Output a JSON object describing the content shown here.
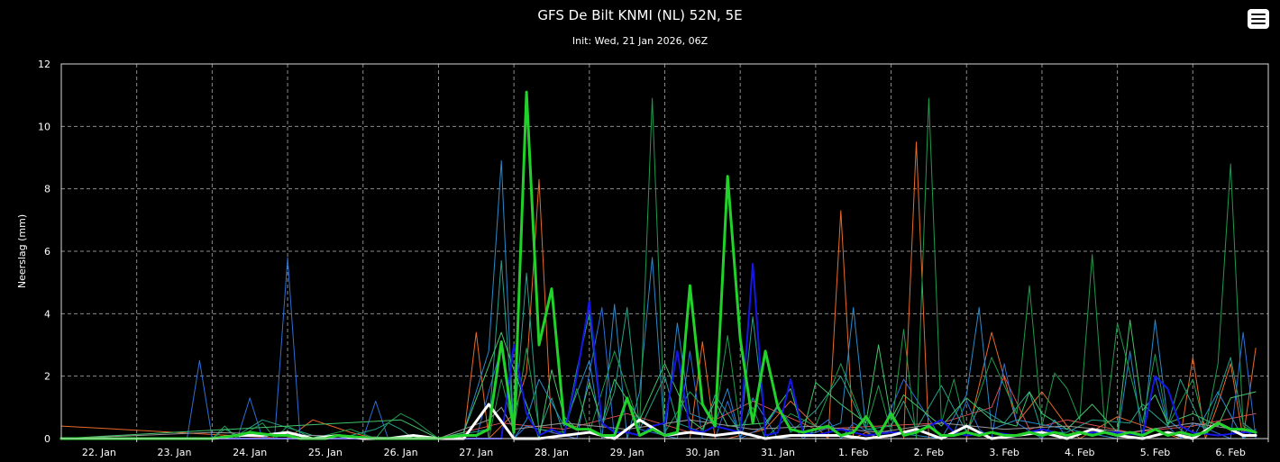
{
  "chart_data": {
    "type": "line",
    "title": "GFS De Bilt KNMI (NL) 52N, 5E",
    "subtitle": "Init: Wed, 21 Jan 2026, 06Z",
    "ylabel": "Neerslag (mm)",
    "xlabel": "",
    "ylim": [
      0,
      12
    ],
    "yticks": [
      0,
      2,
      4,
      6,
      8,
      10,
      12
    ],
    "xlim": [
      0,
      96
    ],
    "xtick_labels": [
      "22. Jan",
      "23. Jan",
      "24. Jan",
      "25. Jan",
      "26. Jan",
      "27. Jan",
      "28. Jan",
      "29. Jan",
      "30. Jan",
      "31. Jan",
      "1. Feb",
      "2. Feb",
      "3. Feb",
      "4. Feb",
      "5. Feb",
      "6. Feb"
    ],
    "xtick_positions": [
      3,
      9,
      15,
      21,
      27,
      33,
      39,
      45,
      51,
      57,
      63,
      69,
      75,
      81,
      87,
      93
    ],
    "grid": true,
    "legend": "none",
    "series": [
      {
        "color": "#e86a2a",
        "width": 1,
        "x": [
          0,
          18,
          20,
          23,
          25,
          32,
          33,
          34,
          36,
          37,
          38,
          39,
          41,
          50,
          51,
          52,
          53,
          56,
          58,
          61,
          62,
          63,
          64,
          65,
          67,
          68,
          69,
          72,
          74,
          76,
          78,
          80,
          81,
          84,
          89,
          90,
          91,
          92,
          93,
          94,
          95
        ],
        "y": [
          0.4,
          0,
          0.6,
          0.2,
          0,
          0,
          3.4,
          0,
          0.8,
          2.1,
          8.3,
          0.2,
          0,
          0,
          3.1,
          0,
          0,
          0.3,
          1.2,
          0,
          7.3,
          0,
          0.2,
          0,
          0,
          9.5,
          0,
          0,
          3.4,
          0.5,
          1.5,
          0.4,
          0,
          0.7,
          0,
          2.6,
          0,
          1.1,
          2.4,
          0,
          2.9
        ]
      },
      {
        "color": "#d85050",
        "width": 1,
        "x": [
          0,
          30,
          35,
          40,
          45,
          50,
          55,
          60,
          65,
          70,
          74,
          75,
          77,
          80,
          85,
          90,
          95
        ],
        "y": [
          0,
          0,
          0.5,
          0.3,
          0.8,
          0.2,
          1.2,
          0.3,
          0.4,
          0.5,
          1.0,
          2.0,
          0.3,
          0.6,
          0.2,
          0.4,
          0.8
        ]
      },
      {
        "color": "#2d6fd6",
        "width": 1,
        "x": [
          0,
          10,
          11,
          12,
          14,
          15,
          16,
          17,
          18,
          19,
          20,
          24,
          25,
          26,
          33,
          34,
          35,
          36,
          37,
          41,
          43,
          44,
          45,
          46,
          49,
          50,
          51,
          52,
          53,
          54,
          56,
          57,
          59,
          61,
          62,
          63,
          65,
          67,
          70,
          71,
          72,
          73,
          74,
          75,
          76,
          78,
          79,
          80,
          86,
          87,
          88,
          89,
          90,
          93,
          94,
          95
        ],
        "y": [
          0,
          0,
          2.5,
          0,
          0,
          1.3,
          0,
          0.2,
          5.8,
          0,
          0,
          0,
          1.2,
          0,
          0,
          1.5,
          2.9,
          0,
          0.4,
          0,
          4.2,
          0,
          1.3,
          0.3,
          0,
          2.8,
          0,
          0,
          1.2,
          0,
          0.4,
          1.0,
          0,
          0.6,
          0,
          0.5,
          0,
          1.9,
          0,
          0.2,
          1.2,
          0.3,
          0,
          2.4,
          0.5,
          0,
          0.6,
          0,
          0,
          2.0,
          0.4,
          0,
          0.5,
          0,
          3.4,
          0
        ]
      },
      {
        "color": "#2b8ac9",
        "width": 1,
        "x": [
          0,
          30,
          32,
          34,
          35,
          36,
          37,
          38,
          40,
          42,
          43,
          44,
          45,
          46,
          47,
          48,
          49,
          50,
          52,
          53,
          54,
          55,
          57,
          60,
          62,
          63,
          64,
          66,
          70,
          72,
          73,
          74,
          76,
          80,
          84,
          85,
          86,
          87,
          88,
          90,
          92,
          94,
          95
        ],
        "y": [
          0,
          0,
          0.2,
          2.8,
          8.9,
          0,
          0.6,
          1.9,
          0.4,
          2.5,
          0,
          4.3,
          0,
          1.5,
          5.8,
          0,
          3.7,
          0.8,
          0.5,
          1.6,
          0,
          1.3,
          0,
          0.2,
          0.5,
          4.2,
          0.3,
          0.2,
          0,
          1.4,
          4.2,
          0.3,
          0.6,
          0.3,
          0,
          2.8,
          0,
          3.8,
          0.6,
          0,
          1.5,
          0,
          0.3
        ]
      },
      {
        "color": "#27a08a",
        "width": 1,
        "x": [
          0,
          12,
          13,
          14,
          16,
          20,
          22,
          25,
          26,
          27,
          28,
          30,
          34,
          35,
          36,
          37,
          38,
          39,
          40,
          41,
          42,
          43,
          44,
          45,
          46,
          48,
          49,
          51,
          52,
          54,
          55,
          56,
          57,
          58,
          60,
          62,
          64,
          66,
          67,
          68,
          70,
          72,
          73,
          75,
          77,
          78,
          80,
          82,
          85,
          86,
          88,
          89,
          91,
          92,
          93,
          94,
          95
        ],
        "y": [
          0,
          0,
          0.3,
          0.1,
          0.6,
          0.1,
          0,
          0.3,
          0.5,
          0.3,
          0,
          0,
          0.3,
          5.7,
          0.2,
          5.3,
          0.2,
          1.3,
          0.1,
          2.2,
          4.0,
          0.4,
          1.5,
          4.2,
          0.3,
          2.0,
          0.5,
          0.2,
          1.4,
          0.2,
          3.9,
          0.4,
          1.1,
          0.2,
          0.9,
          2.0,
          0.3,
          0.4,
          1.2,
          0.3,
          1.7,
          0.2,
          1.0,
          0.5,
          1.5,
          0.2,
          0.2,
          0.6,
          0.5,
          1.1,
          0.4,
          1.9,
          0.2,
          1.4,
          2.6,
          0.5,
          0.2
        ]
      },
      {
        "color": "#1f9a4d",
        "width": 1,
        "x": [
          0,
          12,
          13,
          14,
          16,
          17,
          18,
          20,
          23,
          25,
          26,
          27,
          28,
          30,
          34,
          35,
          36,
          37,
          38,
          40,
          41,
          42,
          44,
          46,
          47,
          48,
          50,
          52,
          53,
          54,
          55,
          56,
          58,
          60,
          62,
          64,
          65,
          66,
          67,
          68,
          69,
          70,
          71,
          72,
          74,
          76,
          77,
          78,
          79,
          80,
          81,
          82,
          83,
          84,
          86,
          87,
          88,
          90,
          91,
          92,
          93,
          94,
          95
        ],
        "y": [
          0,
          0,
          0.4,
          0,
          0.5,
          0,
          0.4,
          0,
          0.3,
          0,
          0.5,
          0.8,
          0.6,
          0,
          0,
          1.9,
          0.3,
          2.9,
          0.3,
          0.2,
          1.6,
          0.2,
          2.8,
          0.4,
          10.9,
          0.2,
          1.5,
          0.6,
          3.3,
          0.3,
          1.0,
          0,
          0.8,
          0.4,
          2.4,
          0.3,
          1.7,
          0.2,
          3.5,
          0,
          10.9,
          0.5,
          1.9,
          0.2,
          2.6,
          0.8,
          4.9,
          0.4,
          2.1,
          1.6,
          0.6,
          5.9,
          0.3,
          3.7,
          0.5,
          2.7,
          0.4,
          1.9,
          0.3,
          2.4,
          8.8,
          0.4,
          0.2
        ]
      },
      {
        "color": "#43c46a",
        "width": 1,
        "x": [
          0,
          27,
          28,
          30,
          32,
          35,
          36,
          38,
          39,
          40,
          41,
          42,
          43,
          44,
          46,
          48,
          50,
          51,
          52,
          53,
          56,
          58,
          59,
          60,
          62,
          64,
          65,
          66,
          67,
          70,
          72,
          74,
          76,
          77,
          78,
          80,
          82,
          84,
          85,
          86,
          87,
          88,
          90,
          92,
          93,
          94,
          95
        ],
        "y": [
          0,
          0.6,
          0.4,
          0,
          0.2,
          3.4,
          2.2,
          0,
          2.2,
          0.7,
          0.3,
          1.8,
          0.5,
          1.9,
          0.6,
          2.4,
          0.6,
          0.3,
          1.2,
          0.4,
          0.5,
          1.6,
          0.2,
          1.8,
          1.1,
          0.5,
          3.0,
          0.6,
          1.4,
          0.4,
          1.3,
          0.6,
          0.4,
          1.5,
          0.8,
          0.3,
          1.1,
          0.2,
          3.8,
          0.9,
          1.4,
          0.5,
          0.8,
          0.4,
          1.3,
          1.4,
          1.5
        ]
      },
      {
        "color": "#9a9a9a",
        "width": 1,
        "x": [
          0,
          12,
          20,
          30,
          34,
          35,
          36,
          40,
          45,
          50,
          55,
          60,
          65,
          70,
          75,
          80,
          85,
          90,
          95
        ],
        "y": [
          0,
          0.2,
          0.1,
          0,
          0.6,
          1.0,
          0.3,
          0.5,
          0.3,
          0.6,
          0.3,
          0.4,
          0.2,
          0.5,
          0.3,
          0.4,
          0.2,
          0.5,
          0.2
        ]
      },
      {
        "color": "#1616e6",
        "width": 2,
        "x": [
          0,
          35,
          36,
          37,
          38,
          39,
          40,
          41,
          42,
          43,
          44,
          45,
          46,
          47,
          48,
          49,
          50,
          51,
          52,
          53,
          54,
          55,
          56,
          57,
          58,
          59,
          60,
          62,
          64,
          66,
          68,
          70,
          71,
          72,
          74,
          76,
          78,
          80,
          82,
          84,
          86,
          87,
          88,
          89,
          90,
          92,
          94,
          95
        ],
        "y": [
          0,
          0,
          3.0,
          0.8,
          0.1,
          0.3,
          0.1,
          2.0,
          4.4,
          0.5,
          0.2,
          0.2,
          0.1,
          0.4,
          0.5,
          2.8,
          0.3,
          0.2,
          0.4,
          0.3,
          0.2,
          5.6,
          0.1,
          0.2,
          1.9,
          0.2,
          0.1,
          0.3,
          0.1,
          0.2,
          0.2,
          0.6,
          0.2,
          0.1,
          0.2,
          0.1,
          0.3,
          0.1,
          0.2,
          0.2,
          0.1,
          2.0,
          1.6,
          0.4,
          0.2,
          0.1,
          0.2,
          0.2
        ]
      },
      {
        "color": "#ffffff",
        "width": 3,
        "x": [
          0,
          12,
          14,
          16,
          18,
          20,
          22,
          24,
          26,
          28,
          30,
          32,
          34,
          36,
          38,
          40,
          42,
          44,
          46,
          48,
          50,
          52,
          54,
          56,
          58,
          60,
          62,
          64,
          66,
          68,
          70,
          72,
          74,
          76,
          78,
          80,
          82,
          84,
          86,
          88,
          90,
          92,
          94,
          95
        ],
        "y": [
          0,
          0,
          0.1,
          0.1,
          0.2,
          0,
          0.1,
          0,
          0,
          0.1,
          0,
          0,
          1.1,
          0,
          0,
          0.1,
          0.2,
          0,
          0.6,
          0.1,
          0.2,
          0.1,
          0.2,
          0,
          0.1,
          0.1,
          0.1,
          0,
          0.1,
          0.3,
          0,
          0.4,
          0,
          0.1,
          0.2,
          0,
          0.3,
          0.1,
          0,
          0.2,
          0,
          0.5,
          0.1,
          0.1
        ]
      },
      {
        "color": "#22d22a",
        "width": 3,
        "x": [
          0,
          12,
          14,
          15,
          17,
          18,
          19,
          21,
          22,
          25,
          28,
          30,
          32,
          33,
          34,
          35,
          36,
          37,
          38,
          39,
          40,
          41,
          42,
          43,
          44,
          45,
          46,
          47,
          48,
          49,
          50,
          51,
          52,
          53,
          54,
          55,
          56,
          57,
          58,
          59,
          60,
          61,
          62,
          63,
          64,
          65,
          66,
          67,
          68,
          69,
          70,
          71,
          72,
          73,
          74,
          75,
          76,
          77,
          78,
          79,
          80,
          81,
          82,
          83,
          84,
          85,
          86,
          87,
          88,
          89,
          90,
          91,
          92,
          93,
          94,
          95
        ],
        "y": [
          0,
          0,
          0.1,
          0.2,
          0.1,
          0.1,
          0,
          0,
          0.1,
          0,
          0,
          0,
          0.1,
          0.1,
          0.3,
          3.1,
          0.2,
          11.1,
          3.0,
          4.8,
          0.5,
          0.3,
          0.3,
          0.1,
          0.1,
          1.3,
          0.1,
          0.3,
          0.1,
          0.2,
          4.9,
          1.1,
          0.4,
          8.4,
          3.2,
          0.5,
          2.8,
          1.0,
          0.3,
          0.2,
          0.3,
          0.4,
          0.1,
          0.2,
          0.7,
          0.1,
          0.8,
          0.1,
          0.2,
          0.4,
          0.1,
          0.1,
          0.2,
          0.1,
          0.2,
          0.1,
          0.1,
          0.2,
          0.1,
          0.2,
          0.1,
          0.2,
          0.1,
          0.2,
          0.1,
          0.2,
          0.1,
          0.3,
          0.1,
          0.2,
          0.1,
          0.2,
          0.5,
          0.3,
          0.3,
          0.2
        ]
      }
    ]
  },
  "ui": {
    "menu_icon": "hamburger-menu-icon",
    "background_color": "#000000",
    "grid_color": "#8c8c8c",
    "frame_color": "#d9d9d9"
  }
}
